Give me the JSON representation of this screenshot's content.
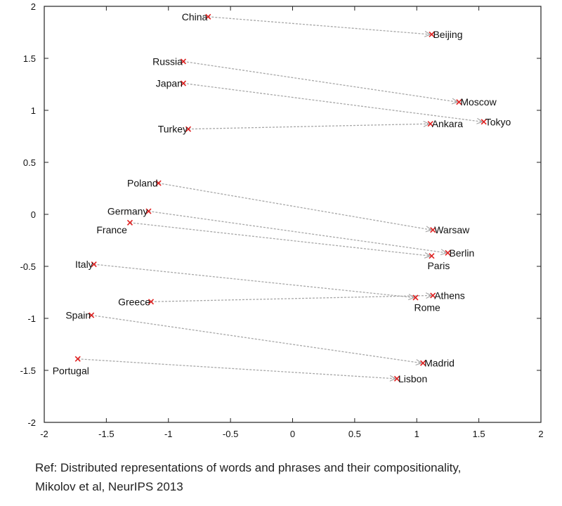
{
  "chart_data": {
    "type": "scatter",
    "title": "",
    "xlabel": "",
    "ylabel": "",
    "xlim": [
      -2,
      2
    ],
    "ylim": [
      -2,
      2
    ],
    "xticks": [
      "-2",
      "-1.5",
      "-1",
      "-0.5",
      "0",
      "0.5",
      "1",
      "1.5",
      "2"
    ],
    "yticks": [
      "2",
      "1.5",
      "1",
      "0.5",
      "0",
      "-0.5",
      "-1",
      "-1.5",
      "-2"
    ],
    "grid": false,
    "marker_color": "#e02020",
    "arrow_color": "#a8a8a8",
    "pairs": [
      {
        "country": "China",
        "country_xy": [
          -0.68,
          1.9
        ],
        "capital": "Beijing",
        "capital_xy": [
          1.12,
          1.73
        ]
      },
      {
        "country": "Russia",
        "country_xy": [
          -0.88,
          1.47
        ],
        "capital": "Moscow",
        "capital_xy": [
          1.34,
          1.08
        ]
      },
      {
        "country": "Japan",
        "country_xy": [
          -0.88,
          1.26
        ],
        "capital": "Tokyo",
        "capital_xy": [
          1.54,
          0.89
        ]
      },
      {
        "country": "Turkey",
        "country_xy": [
          -0.84,
          0.82
        ],
        "capital": "Ankara",
        "capital_xy": [
          1.11,
          0.87
        ]
      },
      {
        "country": "Poland",
        "country_xy": [
          -1.08,
          0.3
        ],
        "capital": "Warsaw",
        "capital_xy": [
          1.13,
          -0.15
        ]
      },
      {
        "country": "Germany",
        "country_xy": [
          -1.16,
          0.03
        ],
        "capital": "Berlin",
        "capital_xy": [
          1.25,
          -0.37
        ]
      },
      {
        "country": "France",
        "country_xy": [
          -1.31,
          -0.08
        ],
        "capital": "Paris",
        "capital_xy": [
          1.12,
          -0.4
        ]
      },
      {
        "country": "Italy",
        "country_xy": [
          -1.6,
          -0.48
        ],
        "capital": "Rome",
        "capital_xy": [
          0.99,
          -0.8
        ]
      },
      {
        "country": "Greece",
        "country_xy": [
          -1.14,
          -0.84
        ],
        "capital": "Athens",
        "capital_xy": [
          1.13,
          -0.78
        ]
      },
      {
        "country": "Spain",
        "country_xy": [
          -1.62,
          -0.97
        ],
        "capital": "Madrid",
        "capital_xy": [
          1.05,
          -1.43
        ]
      },
      {
        "country": "Portugal",
        "country_xy": [
          -1.73,
          -1.39
        ],
        "capital": "Lisbon",
        "capital_xy": [
          0.84,
          -1.58
        ]
      }
    ]
  },
  "caption": {
    "line1": "Ref: Distributed representations of words and phrases and their compositionality,",
    "line2": "Mikolov et al, NeurIPS 2013"
  }
}
